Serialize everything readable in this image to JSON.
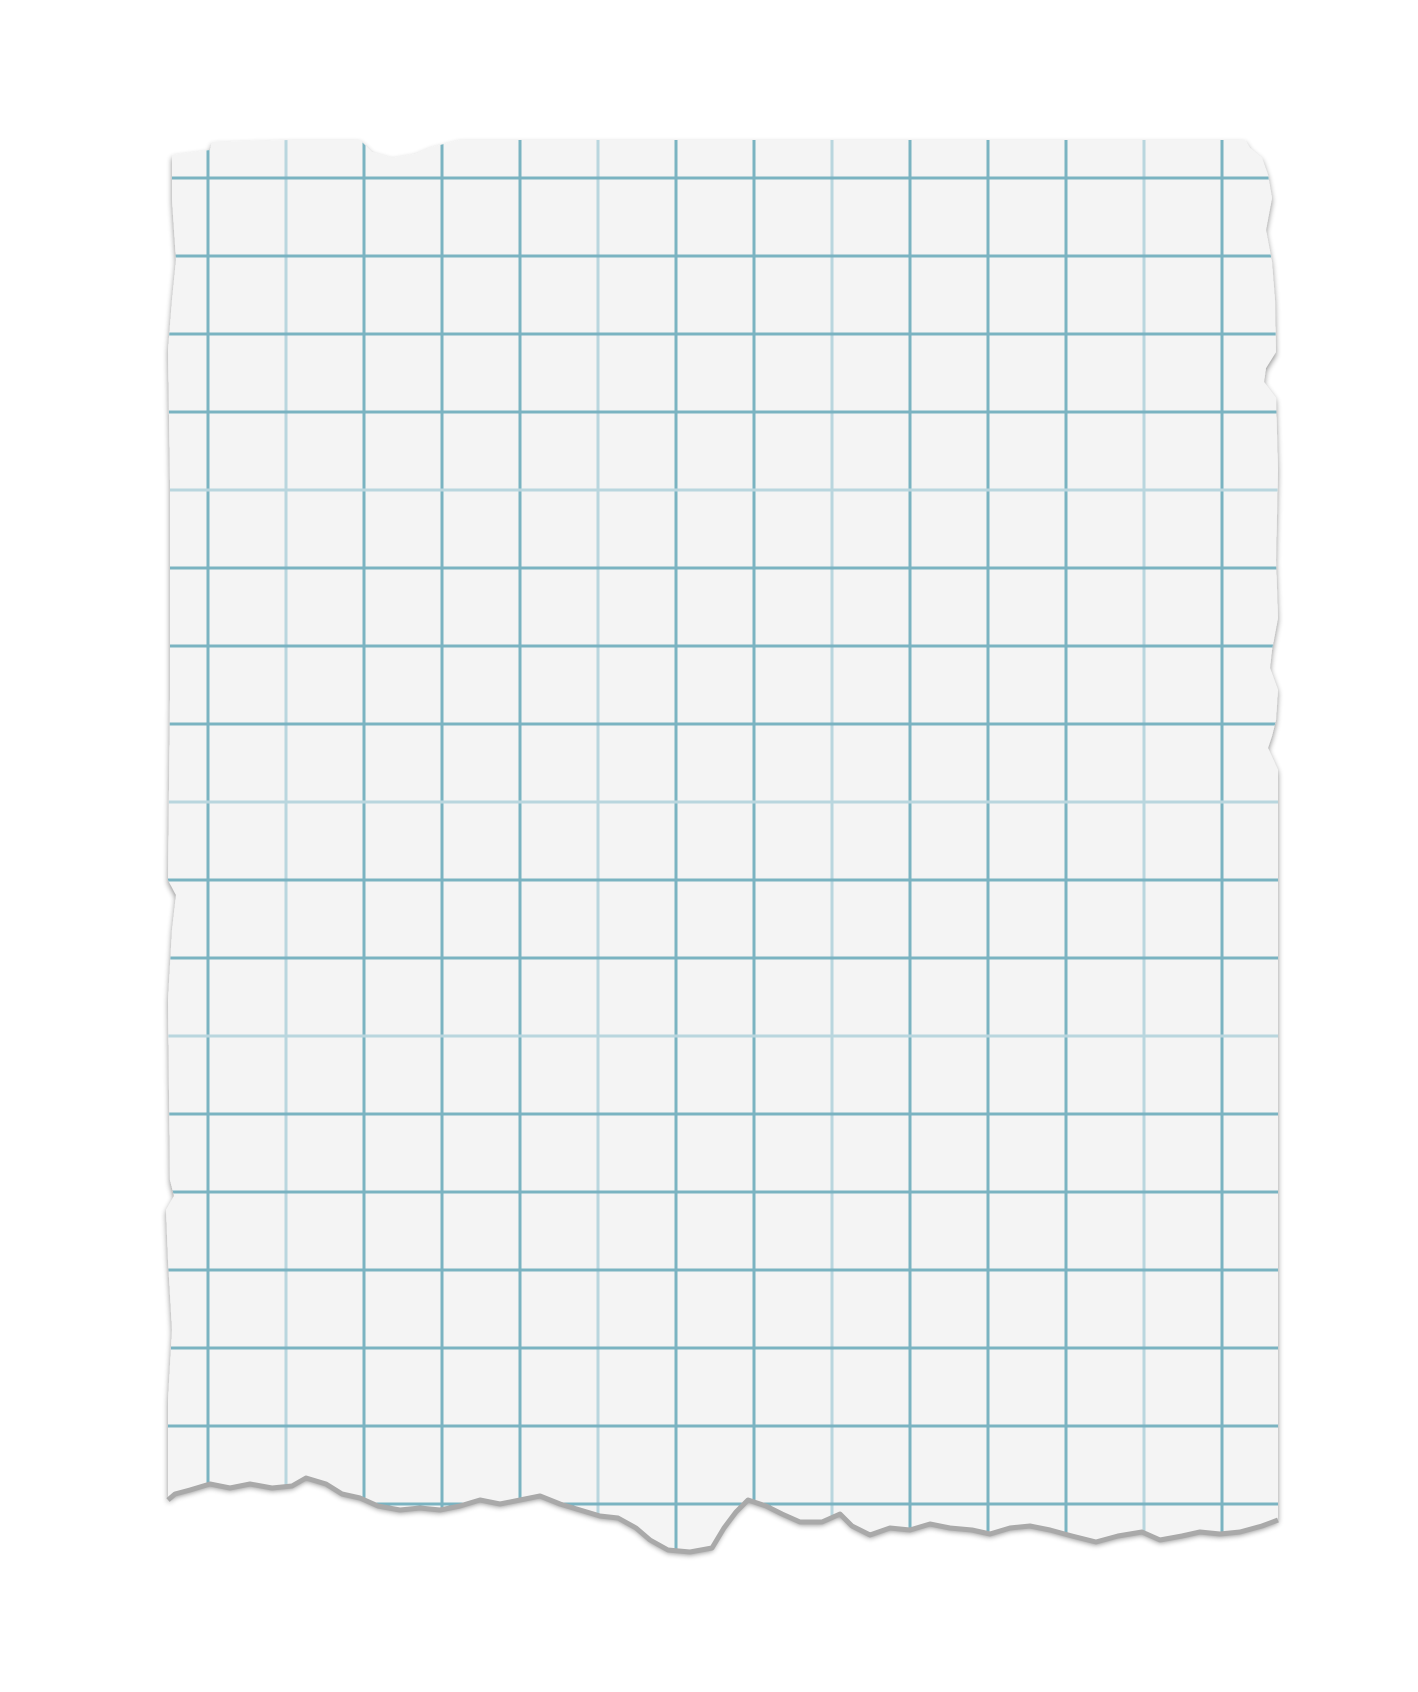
{
  "scene": {
    "subject": "torn-graph-paper-sheet",
    "background_color": "#ffffff",
    "paper_color": "#f4f4f4",
    "grid_line_color": "#7ab3c1",
    "grid_line_faint_color": "#b9d6de",
    "torn_edge_shadow_color": "#a9a9a9",
    "grid": {
      "columns": 14,
      "rows": 17
    }
  }
}
